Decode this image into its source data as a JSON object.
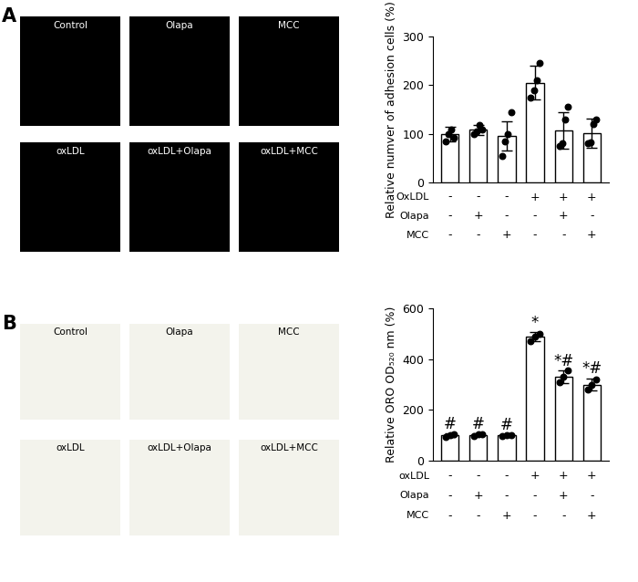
{
  "chart_data": [
    {
      "type": "bar",
      "panel": "A",
      "y_label": "Relative numver of adhesion cells (%)",
      "values": [
        100,
        108,
        95,
        205,
        107,
        102
      ],
      "errors": [
        15,
        10,
        30,
        35,
        38,
        30
      ],
      "points": [
        [
          85,
          100,
          108,
          92
        ],
        [
          100,
          105,
          118,
          108
        ],
        [
          55,
          85,
          100,
          145
        ],
        [
          175,
          190,
          210,
          245
        ],
        [
          75,
          80,
          130,
          155
        ],
        [
          80,
          82,
          120,
          130
        ]
      ],
      "treatments": [
        {
          "name": "OxLDL",
          "values": [
            "-",
            "-",
            "-",
            "+",
            "+",
            "+"
          ]
        },
        {
          "name": "Olapa",
          "values": [
            "-",
            "+",
            "-",
            "-",
            "+",
            "-"
          ]
        },
        {
          "name": "MCC",
          "values": [
            "-",
            "-",
            "+",
            "-",
            "-",
            "+"
          ]
        }
      ],
      "ylim": [
        0,
        300
      ],
      "yticks": [
        0,
        100,
        200,
        300
      ],
      "color": "#ffffff"
    },
    {
      "type": "bar",
      "panel": "B",
      "y_label": "Relative ORO OD₅₂₀ nm (%)",
      "values": [
        100,
        102,
        100,
        488,
        330,
        300
      ],
      "errors": [
        8,
        5,
        4,
        18,
        25,
        25
      ],
      "points": [
        [
          95,
          100,
          103
        ],
        [
          98,
          103,
          105
        ],
        [
          98,
          100,
          102
        ],
        [
          470,
          490,
          500
        ],
        [
          310,
          330,
          355
        ],
        [
          280,
          300,
          320
        ]
      ],
      "annotations": [
        "#",
        "#",
        "#",
        "*",
        "*#",
        "*#"
      ],
      "treatments": [
        {
          "name": "oxLDL",
          "values": [
            "-",
            "-",
            "-",
            "+",
            "+",
            "+"
          ]
        },
        {
          "name": "Olapa",
          "values": [
            "-",
            "+",
            "-",
            "-",
            "+",
            "-"
          ]
        },
        {
          "name": "MCC",
          "values": [
            "-",
            "-",
            "+",
            "-",
            "-",
            "+"
          ]
        }
      ],
      "ylim": [
        0,
        600
      ],
      "yticks": [
        0,
        200,
        400,
        600
      ],
      "color": "#ffffff"
    }
  ],
  "panels": [
    {
      "label": "A",
      "images": [
        "Control",
        "Olapa",
        "MCC",
        "oxLDL",
        "oxLDL+Olapa",
        "oxLDL+MCC"
      ]
    },
    {
      "label": "B",
      "images": [
        "Control",
        "Olapa",
        "MCC",
        "oxLDL",
        "oxLDL+Olapa",
        "oxLDL+MCC"
      ]
    }
  ]
}
